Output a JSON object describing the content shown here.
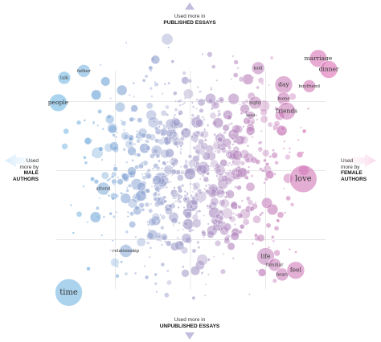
{
  "axes": {
    "top": {
      "line1": "Used more in",
      "line2": "PUBLISHED ESSAYS"
    },
    "bottom": {
      "line1": "Used more in",
      "line2": "UNPUBLISHED ESSAYS"
    },
    "left": {
      "line1": "Used",
      "line2": "more by",
      "line3": "MALE",
      "line4": "AUTHORS"
    },
    "right": {
      "line1": "Used",
      "line2": "more by",
      "line3": "FEMALE",
      "line4": "AUTHORS"
    }
  },
  "colors": {
    "male": "#5ab4e5",
    "neutral": "#a59bc8",
    "female": "#dc5aa8",
    "grid": "#cfcfcf"
  },
  "chart_data": {
    "type": "scatter",
    "xlabel": "",
    "ylabel": "",
    "x_meaning": "gender lean: negative = male authors, positive = female authors",
    "y_meaning": "publication lean: positive = published essays, negative = unpublished essays",
    "xlim": [
      -1,
      1
    ],
    "ylim": [
      -1,
      1
    ],
    "grid": true,
    "labeled_words": [
      {
        "word": "marriage",
        "x": 0.85,
        "y": 0.81,
        "size": 3
      },
      {
        "word": "dinner",
        "x": 0.92,
        "y": 0.73,
        "size": 3
      },
      {
        "word": "told",
        "x": 0.45,
        "y": 0.74,
        "size": 2
      },
      {
        "word": "day",
        "x": 0.62,
        "y": 0.62,
        "size": 3
      },
      {
        "word": "boyfriend",
        "x": 0.79,
        "y": 0.61,
        "size": 2
      },
      {
        "word": "home",
        "x": 0.62,
        "y": 0.52,
        "size": 2
      },
      {
        "word": "night",
        "x": 0.43,
        "y": 0.49,
        "size": 2
      },
      {
        "word": "friends",
        "x": 0.64,
        "y": 0.43,
        "size": 3
      },
      {
        "word": "hand",
        "x": 0.4,
        "y": 0.4,
        "size": 1
      },
      {
        "word": "love",
        "x": 0.75,
        "y": -0.06,
        "size": 4
      },
      {
        "word": "life",
        "x": 0.5,
        "y": -0.62,
        "size": 3
      },
      {
        "word": "familiar",
        "x": 0.56,
        "y": -0.68,
        "size": 2
      },
      {
        "word": "heart",
        "x": 0.61,
        "y": -0.75,
        "size": 2
      },
      {
        "word": "feel",
        "x": 0.7,
        "y": -0.72,
        "size": 3
      },
      {
        "word": "talk",
        "x": -0.84,
        "y": 0.67,
        "size": 2
      },
      {
        "word": "father",
        "x": -0.71,
        "y": 0.72,
        "size": 2
      },
      {
        "word": "people",
        "x": -0.88,
        "y": 0.49,
        "size": 3
      },
      {
        "word": "attend",
        "x": -0.58,
        "y": -0.13,
        "size": 2
      },
      {
        "word": "relationship",
        "x": -0.43,
        "y": -0.58,
        "size": 2
      },
      {
        "word": "time",
        "x": -0.81,
        "y": -0.88,
        "size": 4
      }
    ]
  }
}
